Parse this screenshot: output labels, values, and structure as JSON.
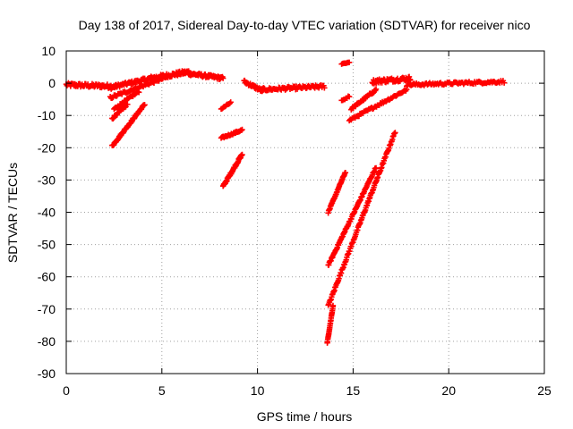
{
  "chart_data": {
    "type": "scatter",
    "title": "Day 138 of 2017, Sidereal Day-to-day VTEC variation (SDTVAR) for receiver nico",
    "xlabel": "GPS time / hours",
    "ylabel": "SDTVAR / TECUs",
    "xlim": [
      0,
      25
    ],
    "ylim": [
      -90,
      10
    ],
    "xticks": [
      0,
      5,
      10,
      15,
      20,
      25
    ],
    "yticks": [
      10,
      0,
      -10,
      -20,
      -30,
      -40,
      -50,
      -60,
      -70,
      -80,
      -90
    ],
    "grid": true,
    "marker": "plus",
    "color": "#ff0000",
    "segments": [
      {
        "name": "flat-start",
        "x0": 0.0,
        "y0": -0.5,
        "x1": 2.6,
        "y1": -1.0,
        "n": 70,
        "jitter": 1.2
      },
      {
        "name": "rise-to-5h",
        "x0": 2.2,
        "y0": -1.5,
        "x1": 4.4,
        "y1": 1.5,
        "n": 60,
        "jitter": 1.0
      },
      {
        "name": "hump-5-6h",
        "x0": 4.4,
        "y0": 1.5,
        "x1": 6.4,
        "y1": 3.5,
        "n": 60,
        "jitter": 1.3
      },
      {
        "name": "plateau-6-8h",
        "x0": 6.4,
        "y0": 3.0,
        "x1": 8.2,
        "y1": 1.5,
        "n": 55,
        "jitter": 1.0
      },
      {
        "name": "rise-lower-a",
        "x0": 2.3,
        "y0": -4.5,
        "x1": 5.3,
        "y1": 2.0,
        "n": 60,
        "jitter": 0.8
      },
      {
        "name": "rise-lower-b",
        "x0": 2.5,
        "y0": -8.0,
        "x1": 3.8,
        "y1": -2.5,
        "n": 30,
        "jitter": 0.7
      },
      {
        "name": "rise-lower-c",
        "x0": 2.4,
        "y0": -11.0,
        "x1": 3.2,
        "y1": -6.5,
        "n": 20,
        "jitter": 0.6
      },
      {
        "name": "steep-2-4h",
        "x0": 2.4,
        "y0": -19.5,
        "x1": 4.1,
        "y1": -6.5,
        "n": 70,
        "jitter": 0.6
      },
      {
        "name": "short-8h",
        "x0": 8.1,
        "y0": -8.0,
        "x1": 8.6,
        "y1": -6.0,
        "n": 12,
        "jitter": 0.4
      },
      {
        "name": "mid-8-9h",
        "x0": 8.1,
        "y0": -17.0,
        "x1": 9.2,
        "y1": -14.5,
        "n": 30,
        "jitter": 0.5
      },
      {
        "name": "steep-8-9h",
        "x0": 8.2,
        "y0": -32.0,
        "x1": 9.2,
        "y1": -22.0,
        "n": 50,
        "jitter": 0.7
      },
      {
        "name": "dip-10h",
        "x0": 9.3,
        "y0": 0.5,
        "x1": 10.3,
        "y1": -2.5,
        "n": 35,
        "jitter": 1.0
      },
      {
        "name": "flat-10-14h",
        "x0": 10.2,
        "y0": -2.0,
        "x1": 13.5,
        "y1": -1.0,
        "n": 80,
        "jitter": 1.0
      },
      {
        "name": "spike-14.5h",
        "x0": 14.4,
        "y0": 6.0,
        "x1": 14.8,
        "y1": 6.5,
        "n": 8,
        "jitter": 0.3
      },
      {
        "name": "rise-14-16h",
        "x0": 14.9,
        "y0": -8.0,
        "x1": 16.2,
        "y1": -2.0,
        "n": 35,
        "jitter": 0.7
      },
      {
        "name": "rise-14-18h",
        "x0": 14.8,
        "y0": -11.5,
        "x1": 17.8,
        "y1": -2.0,
        "n": 60,
        "jitter": 0.7
      },
      {
        "name": "short-14.6h",
        "x0": 14.4,
        "y0": -5.5,
        "x1": 14.8,
        "y1": -4.0,
        "n": 8,
        "jitter": 0.4
      },
      {
        "name": "hump-16-18h",
        "x0": 16.0,
        "y0": 0.5,
        "x1": 18.0,
        "y1": 1.5,
        "n": 60,
        "jitter": 1.3
      },
      {
        "name": "flat-18-23h",
        "x0": 17.8,
        "y0": -0.5,
        "x1": 22.9,
        "y1": 0.5,
        "n": 90,
        "jitter": 0.8
      },
      {
        "name": "plunge-a",
        "x0": 13.7,
        "y0": -40.0,
        "x1": 14.6,
        "y1": -27.5,
        "n": 40,
        "jitter": 0.5
      },
      {
        "name": "plunge-b",
        "x0": 13.7,
        "y0": -56.5,
        "x1": 16.2,
        "y1": -26.0,
        "n": 90,
        "jitter": 0.6
      },
      {
        "name": "plunge-c",
        "x0": 13.7,
        "y0": -69.0,
        "x1": 17.2,
        "y1": -15.0,
        "n": 120,
        "jitter": 0.7
      },
      {
        "name": "plunge-tail",
        "x0": 13.65,
        "y0": -80.5,
        "x1": 13.95,
        "y1": -69.0,
        "n": 25,
        "jitter": 0.3
      }
    ]
  }
}
